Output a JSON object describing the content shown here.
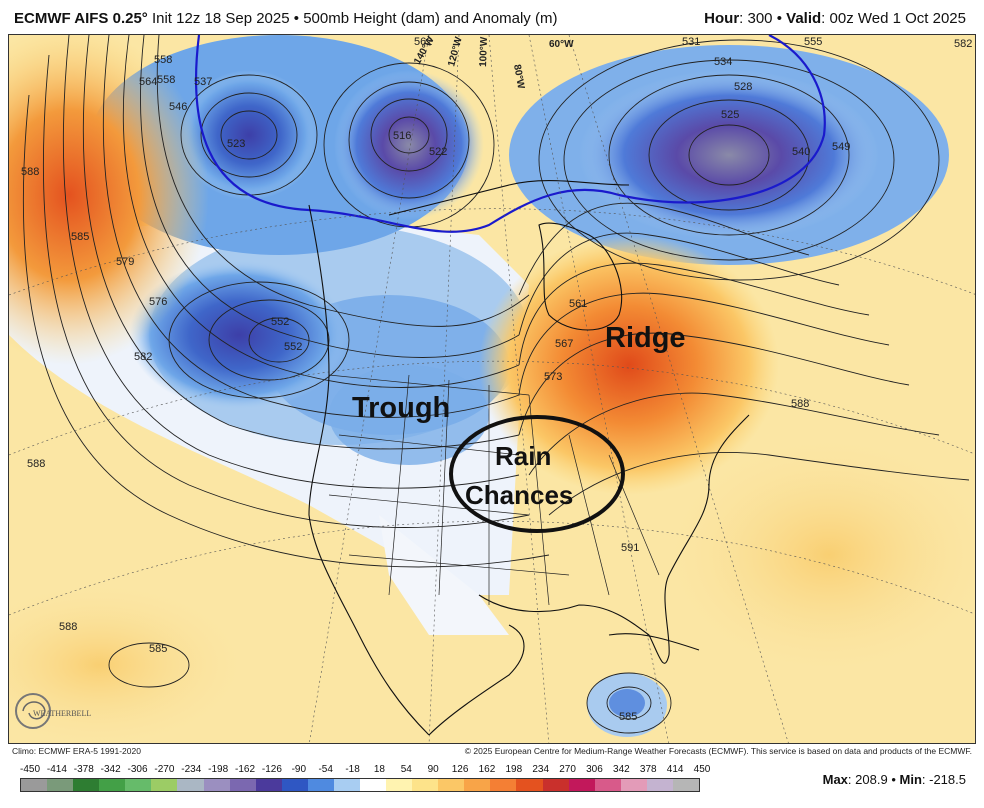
{
  "header": {
    "model": "ECMWF AIFS 0.25°",
    "init": "Init 12z 18 Sep 2025",
    "sep": "•",
    "product": "500mb Height (dam) and Anomaly (m)",
    "hour_label": "Hour",
    "hour_value": "300",
    "valid_label": "Valid",
    "valid_value": "00z Wed 1 Oct 2025"
  },
  "map": {
    "annotations": {
      "ridge": "Ridge",
      "trough": "Trough",
      "rain_line1": "Rain",
      "rain_line2": "Chances"
    },
    "contour_labels": [
      "564",
      "558",
      "537",
      "546",
      "523",
      "516",
      "522",
      "528",
      "531",
      "534",
      "525",
      "540",
      "549",
      "552",
      "555",
      "582",
      "588",
      "585",
      "579",
      "576",
      "582",
      "552",
      "561",
      "567",
      "573",
      "588",
      "591",
      "588",
      "585",
      "585",
      "588",
      "558",
      "562"
    ],
    "longitude_labels": [
      "140°W",
      "120°W",
      "100°W",
      "80°W",
      "60°W"
    ],
    "colors": {
      "ocean_base": "#f7ecc2",
      "strong_neg": "#3d3fa8",
      "mid_neg": "#4d7ad6",
      "weak_neg": "#9bc3ef",
      "strong_pos": "#e4521f",
      "mid_pos": "#f39a3c",
      "weak_pos": "#fbd67a",
      "contour": "#222222",
      "highlight_540": "#1a1acc"
    }
  },
  "footer": {
    "climo": "Climo: ECMWF ERA-5 1991-2020",
    "copyright": "© 2025 European Centre for Medium-Range Weather Forecasts (ECMWF). This service is based on data and products of the ECMWF."
  },
  "colorbar": {
    "ticks": [
      "-450",
      "-414",
      "-378",
      "-342",
      "-306",
      "-270",
      "-234",
      "-198",
      "-162",
      "-126",
      "-90",
      "-54",
      "-18",
      "18",
      "54",
      "90",
      "126",
      "162",
      "198",
      "234",
      "270",
      "306",
      "342",
      "378",
      "414",
      "450"
    ],
    "colors": [
      "#9a9a9a",
      "#7a9a7a",
      "#2e7d32",
      "#43a047",
      "#66bb6a",
      "#9ccc65",
      "#aab7c4",
      "#9b8fc0",
      "#7b68b0",
      "#4b3a9c",
      "#2f57c3",
      "#4f8ae0",
      "#a8cdf2",
      "#ffffff",
      "#fff3b0",
      "#fde38a",
      "#fbc766",
      "#f8a448",
      "#f47f34",
      "#e4521f",
      "#c9302c",
      "#c2185b",
      "#d85a8a",
      "#e39bb8",
      "#c4b3d0",
      "#b6b6b6"
    ],
    "max_label": "Max",
    "max_value": "208.9",
    "min_label": "Min",
    "min_value": "-218.5"
  },
  "logo": {
    "text": "WEATHERBELL",
    "icon": "weatherbell-swirl-icon"
  }
}
